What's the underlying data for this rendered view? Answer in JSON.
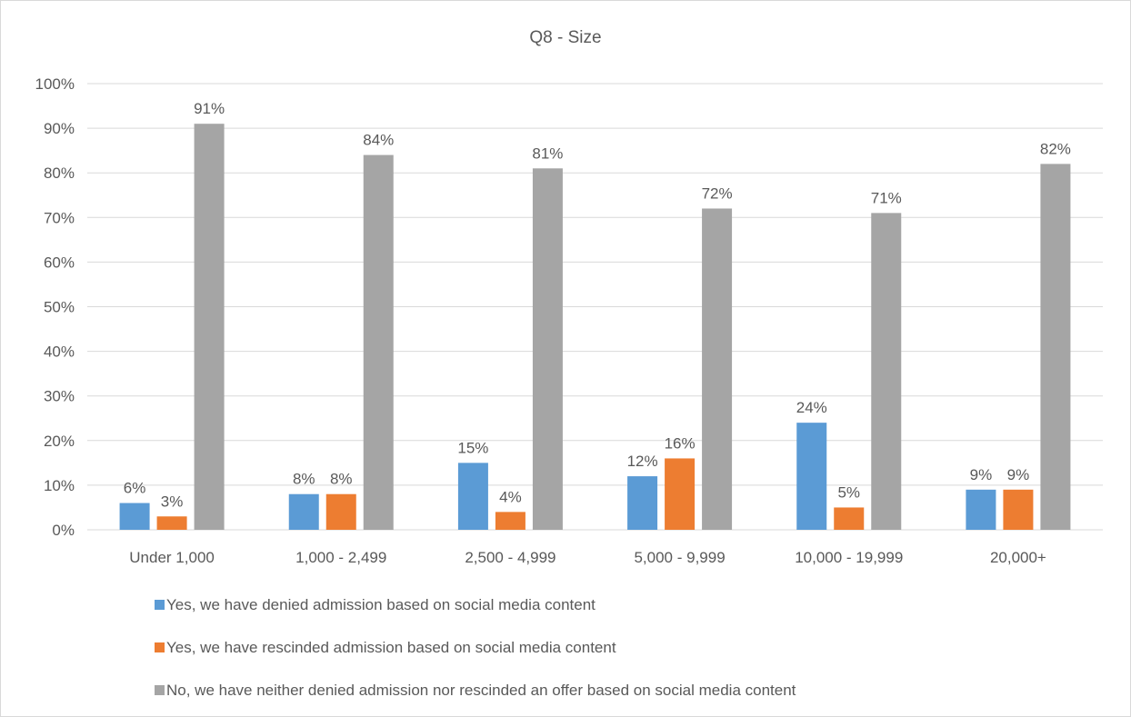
{
  "chart_data": {
    "type": "bar",
    "title": "Q8 - Size",
    "xlabel": "",
    "ylabel": "",
    "ylim": [
      0,
      100
    ],
    "y_tick_step": 10,
    "y_tick_suffix": "%",
    "grid": true,
    "legend_position": "bottom",
    "categories": [
      "Under 1,000",
      "1,000 - 2,499",
      "2,500 - 4,999",
      "5,000 - 9,999",
      "10,000 - 19,999",
      "20,000+"
    ],
    "series": [
      {
        "name": "Yes, we have denied admission based on social media content",
        "color": "#5b9bd5",
        "values": [
          6,
          8,
          15,
          12,
          24,
          9
        ],
        "labels": [
          "6%",
          "8%",
          "15%",
          "12%",
          "24%",
          "9%"
        ]
      },
      {
        "name": "Yes, we have rescinded admission based on social media content",
        "color": "#ed7d31",
        "values": [
          3,
          8,
          4,
          16,
          5,
          9
        ],
        "labels": [
          "3%",
          "8%",
          "4%",
          "16%",
          "5%",
          "9%"
        ]
      },
      {
        "name": "No, we have neither denied admission nor rescinded an offer based on social media content",
        "color": "#a5a5a5",
        "values": [
          91,
          84,
          81,
          72,
          71,
          82
        ],
        "labels": [
          "91%",
          "84%",
          "81%",
          "72%",
          "71%",
          "82%"
        ]
      }
    ]
  }
}
